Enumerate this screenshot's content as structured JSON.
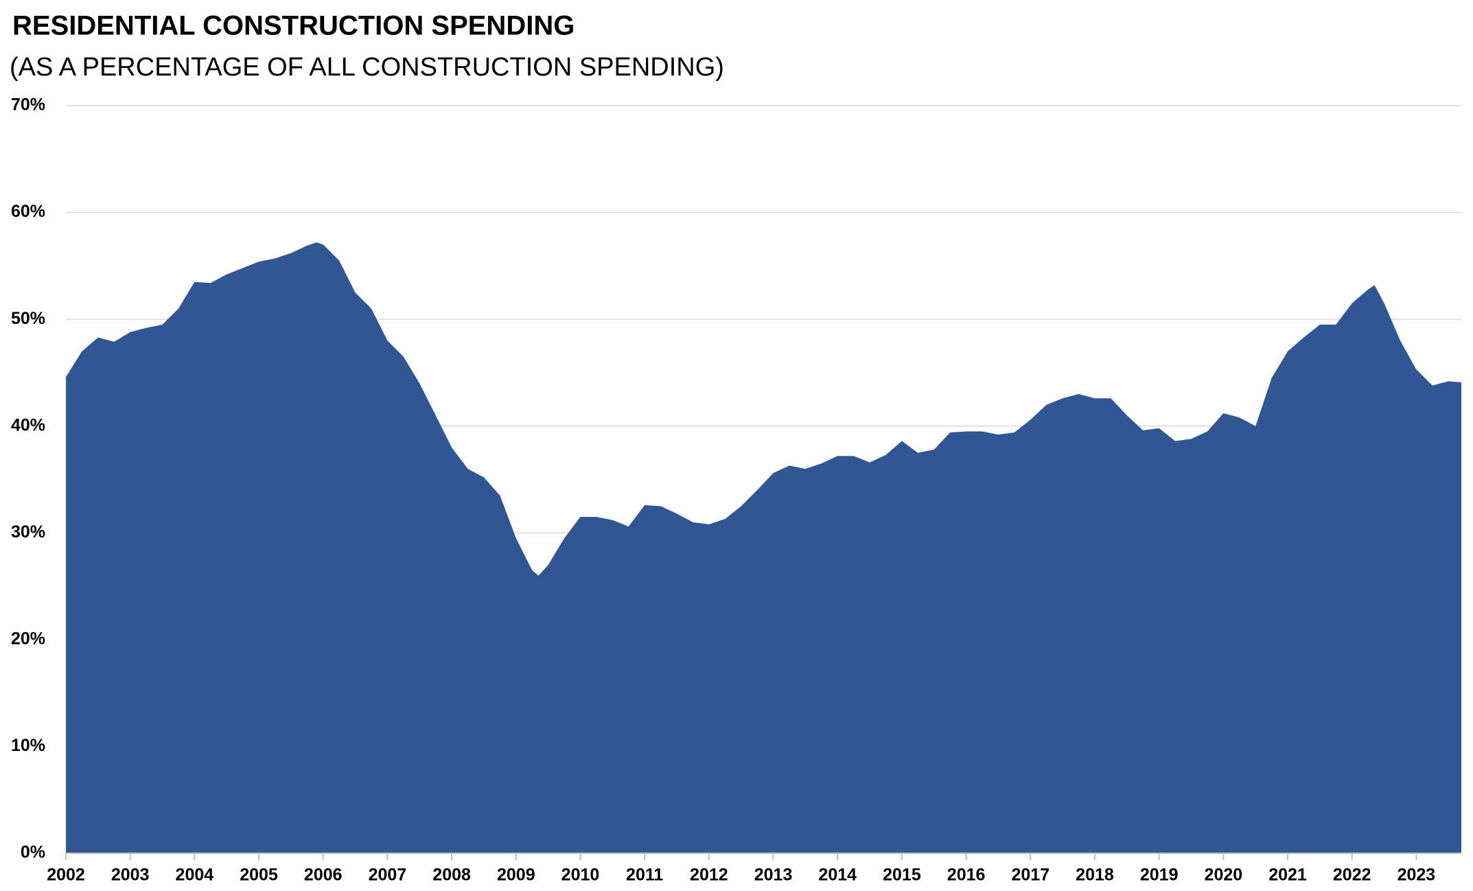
{
  "chart_data": {
    "type": "area",
    "title": "RESIDENTIAL CONSTRUCTION SPENDING",
    "subtitle": "(AS A PERCENTAGE OF ALL CONSTRUCTION SPENDING)",
    "color": "#305694",
    "grid": true,
    "xlim": [
      2002,
      2023.7
    ],
    "xticks": [
      2002,
      2003,
      2004,
      2005,
      2006,
      2007,
      2008,
      2009,
      2010,
      2011,
      2012,
      2013,
      2014,
      2015,
      2016,
      2017,
      2018,
      2019,
      2020,
      2021,
      2022,
      2023
    ],
    "ylim": [
      0,
      70
    ],
    "yticks": [
      {
        "value": 0,
        "label": "0%"
      },
      {
        "value": 10,
        "label": "10%"
      },
      {
        "value": 20,
        "label": "20%"
      },
      {
        "value": 30,
        "label": "30%"
      },
      {
        "value": 40,
        "label": "40%"
      },
      {
        "value": 50,
        "label": "50%"
      },
      {
        "value": 60,
        "label": "60%"
      },
      {
        "value": 70,
        "label": "70%"
      }
    ],
    "x": [
      2002.0,
      2002.25,
      2002.5,
      2002.75,
      2003.0,
      2003.25,
      2003.5,
      2003.75,
      2004.0,
      2004.25,
      2004.5,
      2004.75,
      2005.0,
      2005.25,
      2005.5,
      2005.75,
      2005.9,
      2006.0,
      2006.25,
      2006.5,
      2006.75,
      2007.0,
      2007.25,
      2007.5,
      2007.75,
      2008.0,
      2008.25,
      2008.5,
      2008.75,
      2009.0,
      2009.25,
      2009.35,
      2009.5,
      2009.75,
      2010.0,
      2010.25,
      2010.5,
      2010.75,
      2011.0,
      2011.25,
      2011.5,
      2011.75,
      2012.0,
      2012.25,
      2012.5,
      2012.75,
      2013.0,
      2013.25,
      2013.5,
      2013.75,
      2014.0,
      2014.25,
      2014.5,
      2014.75,
      2015.0,
      2015.25,
      2015.5,
      2015.75,
      2016.0,
      2016.25,
      2016.5,
      2016.75,
      2017.0,
      2017.25,
      2017.5,
      2017.75,
      2018.0,
      2018.25,
      2018.5,
      2018.75,
      2019.0,
      2019.25,
      2019.5,
      2019.75,
      2020.0,
      2020.25,
      2020.5,
      2020.75,
      2021.0,
      2021.25,
      2021.5,
      2021.75,
      2022.0,
      2022.25,
      2022.35,
      2022.5,
      2022.75,
      2023.0,
      2023.25,
      2023.5,
      2023.7
    ],
    "values": [
      44.6,
      47.0,
      48.3,
      47.9,
      48.8,
      49.2,
      49.5,
      51.0,
      53.5,
      53.4,
      54.2,
      54.8,
      55.4,
      55.7,
      56.2,
      56.9,
      57.2,
      57.0,
      55.5,
      52.5,
      51.0,
      48.0,
      46.5,
      44.0,
      41.0,
      38.0,
      36.0,
      35.2,
      33.5,
      29.5,
      26.5,
      26.0,
      27.0,
      29.5,
      31.5,
      31.5,
      31.2,
      30.6,
      32.6,
      32.5,
      31.8,
      31.0,
      30.8,
      31.3,
      32.5,
      34.0,
      35.6,
      36.3,
      36.0,
      36.5,
      37.2,
      37.2,
      36.6,
      37.3,
      38.6,
      37.5,
      37.8,
      39.4,
      39.5,
      39.5,
      39.2,
      39.4,
      40.6,
      42.0,
      42.6,
      43.0,
      42.6,
      42.6,
      41.0,
      39.6,
      39.8,
      38.6,
      38.8,
      39.5,
      41.2,
      40.8,
      40.0,
      44.5,
      47.0,
      48.3,
      49.5,
      49.5,
      51.5,
      52.8,
      53.2,
      51.5,
      48.0,
      45.3,
      43.8,
      44.2,
      44.1
    ]
  }
}
